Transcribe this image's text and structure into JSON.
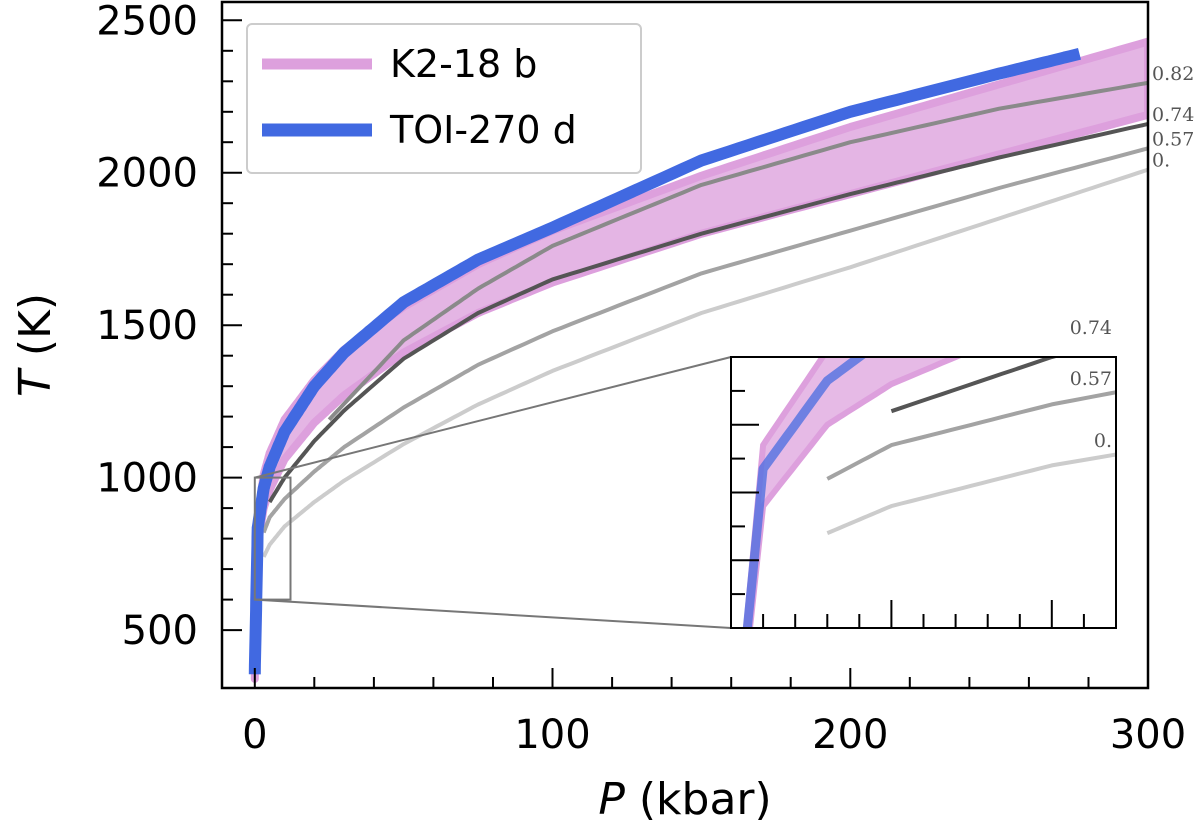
{
  "chart_data": {
    "type": "line",
    "xlabel_symbol": "P",
    "xlabel_unit": " (kbar)",
    "ylabel_symbol": "T",
    "ylabel_unit": " (K)",
    "xlim": [
      -11,
      300
    ],
    "ylim": [
      310,
      2560
    ],
    "xticks": [
      0,
      100,
      200,
      300
    ],
    "xtick_labels": [
      "0",
      "100",
      "200",
      "300"
    ],
    "yticks": [
      500,
      1000,
      1500,
      2000,
      2500
    ],
    "ytick_labels": [
      "500",
      "1000",
      "1500",
      "2000",
      "2500"
    ],
    "legend": {
      "placement": "top-left",
      "entries": [
        {
          "label": "K2-18 b",
          "color": "#dda0dd"
        },
        {
          "label": "TOI-270 d",
          "color": "#4169e1"
        }
      ]
    },
    "bands": [
      {
        "name": "K2-18 b",
        "color": "#dda0dd",
        "x": [
          0,
          1,
          3,
          5,
          10,
          20,
          30,
          50,
          75,
          100,
          150,
          200,
          250,
          300
        ],
        "upper": [
          360,
          870,
          1010,
          1080,
          1190,
          1320,
          1420,
          1560,
          1700,
          1810,
          1990,
          2150,
          2290,
          2430
        ],
        "lower": [
          340,
          780,
          900,
          960,
          1060,
          1180,
          1270,
          1410,
          1540,
          1640,
          1800,
          1930,
          2060,
          2190
        ]
      }
    ],
    "series": [
      {
        "name": "TOI-270 d",
        "color": "#4169e1",
        "width": 12,
        "x": [
          0,
          1,
          3,
          5,
          10,
          20,
          30,
          50,
          75,
          100,
          150,
          200,
          250,
          277
        ],
        "y": [
          355,
          835,
          965,
          1035,
          1150,
          1300,
          1410,
          1575,
          1715,
          1820,
          2040,
          2200,
          2325,
          2390
        ]
      },
      {
        "name": "0.82",
        "label": "0.82",
        "color": "#8a8a8a",
        "width": 4,
        "x": [
          25,
          50,
          75,
          100,
          150,
          200,
          250,
          300
        ],
        "y": [
          1190,
          1450,
          1620,
          1760,
          1960,
          2100,
          2210,
          2295
        ]
      },
      {
        "name": "0.74",
        "label": "0.74",
        "color": "#555555",
        "width": 4,
        "x": [
          5,
          10,
          20,
          30,
          50,
          75,
          100,
          150,
          200,
          250,
          300
        ],
        "y": [
          920,
          1000,
          1120,
          1220,
          1390,
          1540,
          1650,
          1800,
          1930,
          2050,
          2160
        ]
      },
      {
        "name": "0.57",
        "label": "0.57",
        "color": "#a3a3a3",
        "width": 4,
        "x": [
          3,
          5,
          10,
          20,
          30,
          50,
          75,
          100,
          150,
          200,
          250,
          300
        ],
        "y": [
          820,
          870,
          930,
          1020,
          1100,
          1230,
          1370,
          1480,
          1670,
          1810,
          1950,
          2080
        ]
      },
      {
        "name": "0.",
        "label": "0.",
        "color": "#cccccc",
        "width": 4,
        "x": [
          3,
          5,
          10,
          20,
          30,
          50,
          75,
          100,
          150,
          200,
          250,
          300
        ],
        "y": [
          740,
          780,
          840,
          920,
          990,
          1110,
          1240,
          1350,
          1540,
          1690,
          1850,
          2010
        ]
      }
    ],
    "inset": {
      "xlim": [
        0,
        12
      ],
      "ylim": [
        600,
        1000
      ],
      "labels": [
        "0.74",
        "0.57",
        "0."
      ]
    }
  }
}
